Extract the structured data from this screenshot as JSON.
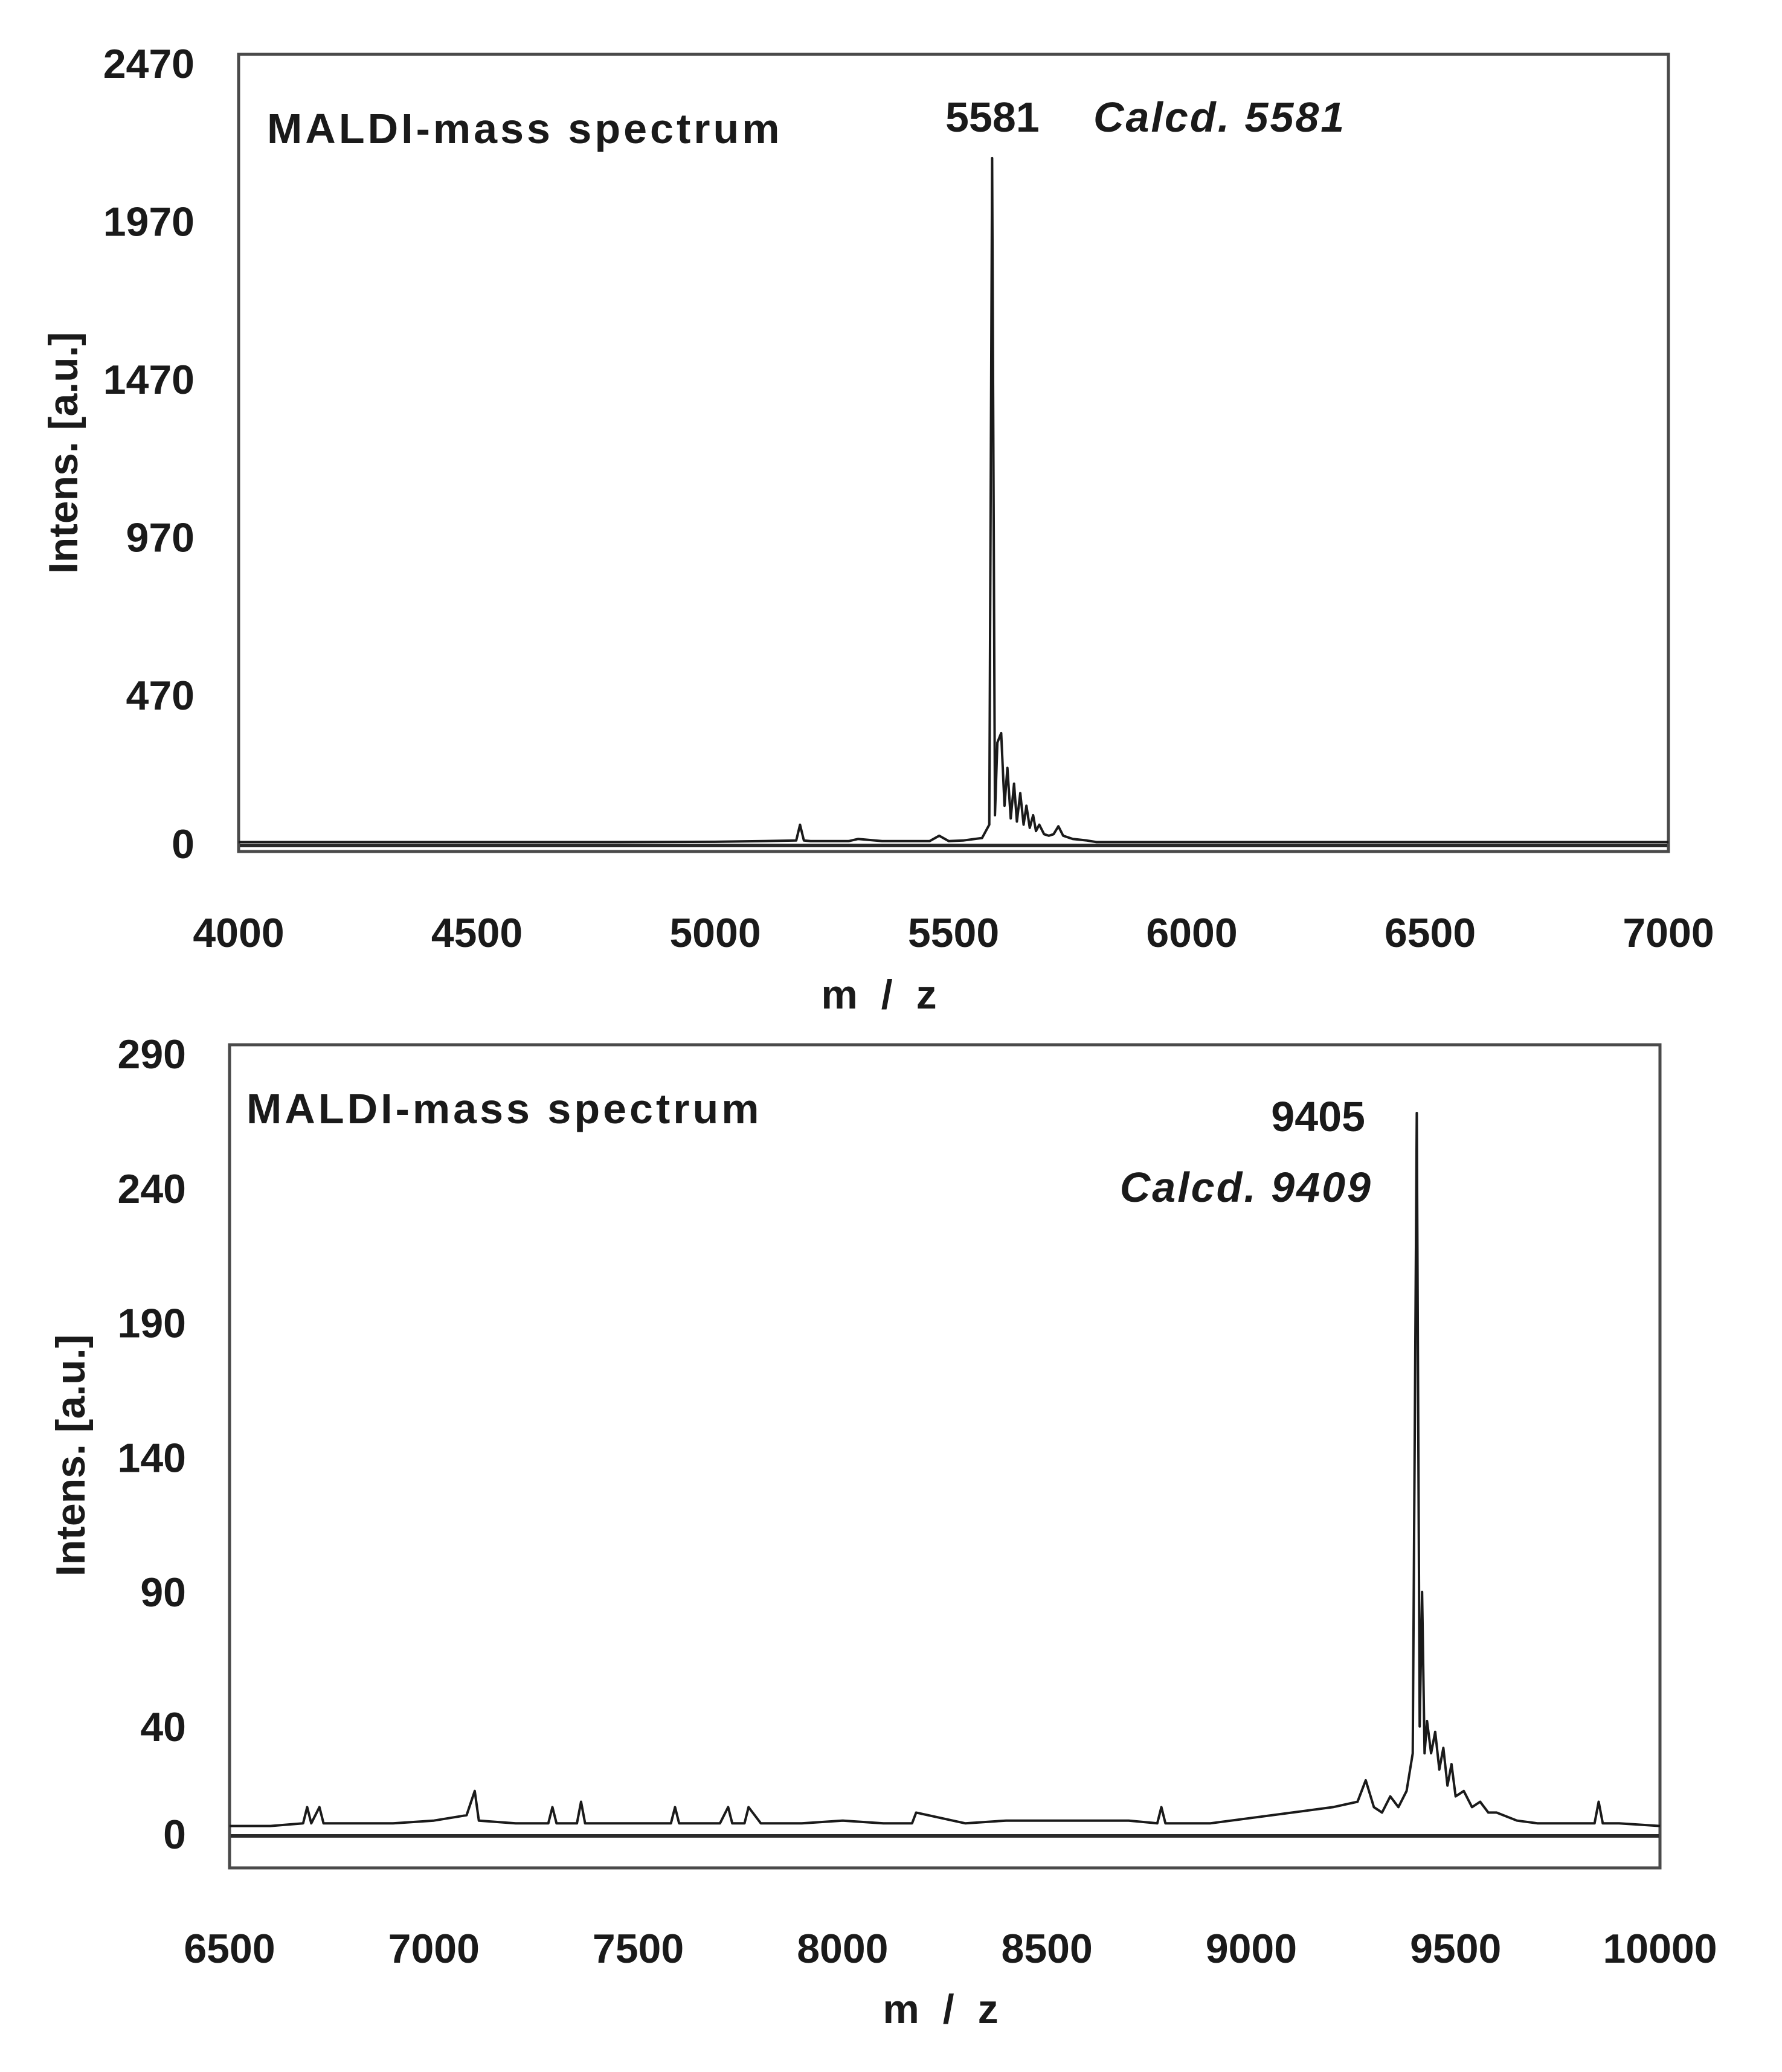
{
  "chart_data": [
    {
      "type": "line",
      "title": "MALDI-mass spectrum",
      "xlabel": "m / z",
      "ylabel": "Intens. [a.u.]",
      "xlim": [
        4000,
        7000
      ],
      "ylim": [
        0,
        2470
      ],
      "x_ticks": [
        4000,
        4500,
        5000,
        5500,
        6000,
        6500,
        7000
      ],
      "y_ticks": [
        0,
        470,
        970,
        1470,
        1970,
        2470
      ],
      "grid": false,
      "annotations": [
        {
          "text": "5581",
          "x": 5581,
          "style": "bold"
        },
        {
          "text": "Calcd. 5581",
          "x": 5581,
          "style": "italic"
        }
      ],
      "series": [
        {
          "x": [
            4000,
            4200,
            4400,
            4600,
            4800,
            5000,
            5100,
            5170,
            5178,
            5186,
            5200,
            5280,
            5300,
            5350,
            5400,
            5450,
            5470,
            5490,
            5520,
            5560,
            5575,
            5581,
            5587,
            5592,
            5600,
            5607,
            5613,
            5620,
            5627,
            5633,
            5640,
            5647,
            5653,
            5660,
            5667,
            5673,
            5680,
            5690,
            5700,
            5710,
            5720,
            5730,
            5750,
            5780,
            5800,
            5900,
            6000,
            6200,
            6400,
            6600,
            6800,
            7000
          ],
          "y": [
            5,
            5,
            5,
            5,
            5,
            6,
            8,
            10,
            60,
            10,
            8,
            8,
            15,
            8,
            8,
            8,
            25,
            8,
            10,
            18,
            60,
            2170,
            90,
            320,
            350,
            120,
            240,
            80,
            190,
            70,
            160,
            60,
            120,
            50,
            90,
            40,
            60,
            30,
            25,
            30,
            55,
            25,
            15,
            10,
            5,
            5,
            5,
            5,
            5,
            5,
            5,
            5
          ]
        }
      ]
    },
    {
      "type": "line",
      "title": "MALDI-mass spectrum",
      "xlabel": "m / z",
      "ylabel": "Intens. [a.u.]",
      "xlim": [
        6500,
        10000
      ],
      "ylim": [
        0,
        290
      ],
      "x_ticks": [
        6500,
        7000,
        7500,
        8000,
        8500,
        9000,
        9500,
        10000
      ],
      "y_ticks": [
        0,
        40,
        90,
        140,
        190,
        240,
        290
      ],
      "grid": false,
      "annotations": [
        {
          "text": "9405",
          "x": 9405,
          "style": "bold"
        },
        {
          "text": "Calcd. 9409",
          "x": 9409,
          "style": "italic"
        }
      ],
      "series": [
        {
          "x": [
            6500,
            6600,
            6680,
            6690,
            6700,
            6720,
            6730,
            6800,
            6900,
            7000,
            7080,
            7100,
            7110,
            7200,
            7280,
            7290,
            7300,
            7350,
            7360,
            7370,
            7500,
            7580,
            7590,
            7600,
            7700,
            7720,
            7730,
            7760,
            7770,
            7800,
            7900,
            8000,
            8100,
            8170,
            8180,
            8300,
            8400,
            8500,
            8600,
            8700,
            8770,
            8780,
            8790,
            8900,
            9000,
            9100,
            9200,
            9260,
            9280,
            9300,
            9320,
            9340,
            9360,
            9380,
            9395,
            9405,
            9412,
            9418,
            9424,
            9430,
            9440,
            9450,
            9460,
            9470,
            9480,
            9490,
            9500,
            9520,
            9540,
            9560,
            9580,
            9600,
            9650,
            9700,
            9800,
            9840,
            9850,
            9860,
            9900,
            10000
          ],
          "y": [
            3,
            3,
            4,
            10,
            4,
            10,
            4,
            4,
            4,
            5,
            7,
            16,
            5,
            4,
            4,
            10,
            4,
            4,
            12,
            4,
            4,
            4,
            10,
            4,
            4,
            10,
            4,
            4,
            10,
            4,
            4,
            5,
            4,
            4,
            8,
            4,
            5,
            5,
            5,
            5,
            4,
            10,
            4,
            4,
            6,
            8,
            10,
            12,
            20,
            10,
            8,
            14,
            10,
            16,
            30,
            268,
            40,
            90,
            30,
            42,
            30,
            38,
            24,
            32,
            18,
            26,
            14,
            16,
            10,
            12,
            8,
            8,
            5,
            4,
            4,
            4,
            12,
            4,
            4,
            3
          ]
        }
      ]
    }
  ]
}
